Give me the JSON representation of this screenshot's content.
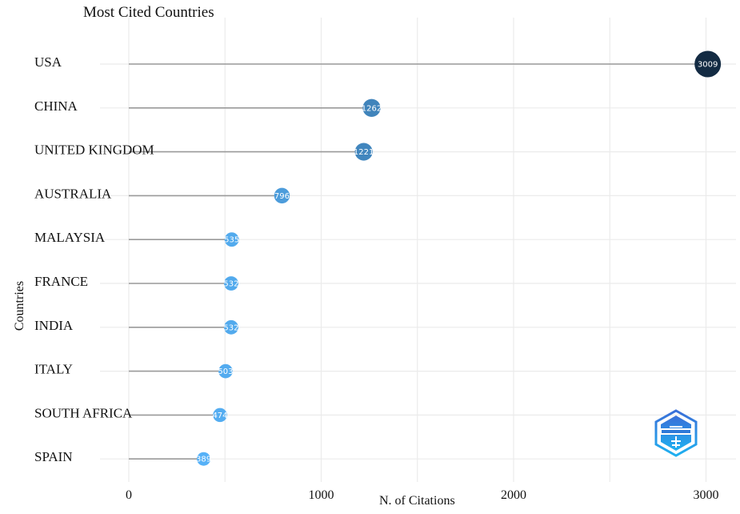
{
  "chart_data": {
    "type": "lollipop",
    "title": "Most Cited Countries",
    "xlabel": "N. of Citations",
    "ylabel": "Countries",
    "categories": [
      "USA",
      "CHINA",
      "UNITED KINGDOM",
      "AUSTRALIA",
      "MALAYSIA",
      "FRANCE",
      "INDIA",
      "ITALY",
      "SOUTH AFRICA",
      "SPAIN"
    ],
    "values": [
      3009,
      1262,
      1221,
      796,
      535,
      532,
      532,
      503,
      474,
      389
    ],
    "xticks": [
      0,
      1000,
      2000,
      3000
    ],
    "xlim": [
      -150,
      3150
    ],
    "grid": true,
    "colors": {
      "low": "#56b1f7",
      "high": "#132b43",
      "stem": "#9a9a9a",
      "grid": "#ebebeb",
      "value_text": "#ffffff"
    }
  },
  "logo": {
    "icon": "bibliometrix-logo-icon"
  }
}
